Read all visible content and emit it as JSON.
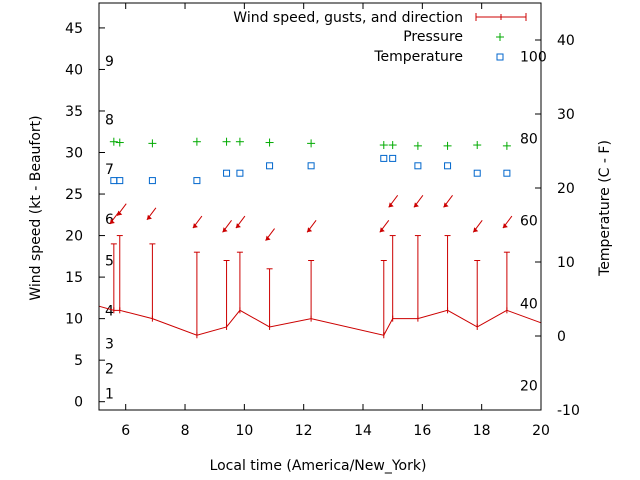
{
  "chart_data": {
    "type": "line",
    "xlabel": "Local time (America/New_York)",
    "ylabel": "Wind speed (kt - Beaufort)",
    "y2label": "Temperature (C - F)",
    "xlim": [
      5.1,
      20
    ],
    "ylim": [
      -1,
      48
    ],
    "y2lim": [
      -10,
      45
    ],
    "x_ticks": [
      6,
      8,
      10,
      12,
      14,
      16,
      18,
      20
    ],
    "y_ticks": [
      0,
      5,
      10,
      15,
      20,
      25,
      30,
      35,
      40,
      45
    ],
    "y2_ticks": [
      -10,
      0,
      10,
      20,
      30,
      40
    ],
    "beaufort_labels": [
      {
        "label": "1",
        "y": 1
      },
      {
        "label": "2",
        "y": 4
      },
      {
        "label": "3",
        "y": 7
      },
      {
        "label": "4",
        "y": 11
      },
      {
        "label": "5",
        "y": 17
      },
      {
        "label": "6",
        "y": 22
      },
      {
        "label": "7",
        "y": 28
      },
      {
        "label": "8",
        "y": 34
      },
      {
        "label": "9",
        "y": 41
      }
    ],
    "fahrenheit_labels": [
      {
        "label": "20",
        "t": -6.7
      },
      {
        "label": "40",
        "t": 4.4
      },
      {
        "label": "60",
        "t": 15.6
      },
      {
        "label": "80",
        "t": 26.7
      },
      {
        "label": "100",
        "t": 37.8
      }
    ],
    "legend": {
      "wind": "Wind speed, gusts, and direction",
      "pressure": "Pressure",
      "temperature": "Temperature"
    },
    "colors": {
      "wind": "#cc0000",
      "pressure": "#00aa00",
      "temperature": "#0066cc"
    },
    "wind": {
      "x": [
        5.1,
        5.6,
        5.8,
        6.9,
        8.4,
        9.4,
        9.85,
        10.85,
        12.25,
        14.7,
        15.0,
        15.85,
        16.85,
        17.85,
        18.85,
        20.0
      ],
      "speed": [
        11.5,
        11,
        11,
        10,
        8,
        9,
        11,
        9,
        10,
        8,
        10,
        10,
        11,
        9,
        11,
        9.5
      ],
      "gust": [
        null,
        19,
        20,
        19,
        18,
        17,
        18,
        16,
        17,
        17,
        20,
        20,
        20,
        17,
        18,
        null
      ],
      "direction_arrows": [
        {
          "x": 5.6,
          "y": 22
        },
        {
          "x": 5.85,
          "y": 23
        },
        {
          "x": 6.85,
          "y": 22.5
        },
        {
          "x": 8.4,
          "y": 21.5
        },
        {
          "x": 9.4,
          "y": 21
        },
        {
          "x": 9.85,
          "y": 21.5
        },
        {
          "x": 10.85,
          "y": 20
        },
        {
          "x": 12.25,
          "y": 21
        },
        {
          "x": 14.7,
          "y": 21
        },
        {
          "x": 15.0,
          "y": 24
        },
        {
          "x": 15.85,
          "y": 24
        },
        {
          "x": 16.85,
          "y": 24
        },
        {
          "x": 17.85,
          "y": 21
        },
        {
          "x": 18.85,
          "y": 21.5
        }
      ]
    },
    "pressure": {
      "x": [
        5.6,
        5.8,
        6.9,
        8.4,
        9.4,
        9.85,
        10.85,
        12.25,
        14.7,
        15.0,
        15.85,
        16.85,
        17.85,
        18.85
      ],
      "y": [
        31.3,
        31.2,
        31.1,
        31.3,
        31.3,
        31.3,
        31.2,
        31.1,
        30.9,
        30.9,
        30.8,
        30.8,
        30.9,
        30.8
      ]
    },
    "temperature": {
      "x": [
        5.6,
        5.8,
        6.9,
        8.4,
        9.4,
        9.85,
        10.85,
        12.25,
        14.7,
        15.0,
        15.85,
        16.85,
        17.85,
        18.85
      ],
      "y": [
        21,
        21,
        21,
        21,
        22,
        22,
        23,
        23,
        24,
        24,
        23,
        23,
        22,
        22
      ]
    }
  }
}
